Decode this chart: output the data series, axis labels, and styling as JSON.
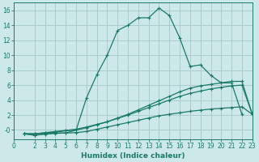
{
  "bg_color": "#cce8e8",
  "grid_color": "#aacccc",
  "line_color": "#1a7a6a",
  "xlabel": "Humidex (Indice chaleur)",
  "xlim": [
    0,
    23
  ],
  "ylim": [
    -1.2,
    17
  ],
  "yticks": [
    0,
    2,
    4,
    6,
    8,
    10,
    12,
    14,
    16
  ],
  "ytick_labels": [
    "-0",
    "2",
    "4",
    "6",
    "8",
    "10",
    "12",
    "14",
    "16"
  ],
  "xticks": [
    0,
    2,
    3,
    4,
    5,
    6,
    7,
    8,
    9,
    10,
    11,
    12,
    13,
    14,
    15,
    16,
    17,
    18,
    19,
    20,
    21,
    22,
    23
  ],
  "series4_x": [
    1,
    2,
    3,
    4,
    5,
    6,
    7,
    8,
    9,
    10,
    11,
    12,
    13,
    14,
    15,
    16,
    17,
    18,
    19,
    20,
    21,
    22
  ],
  "series4_y": [
    -0.5,
    -0.7,
    -0.5,
    -0.4,
    -0.4,
    0.0,
    4.3,
    7.4,
    10.0,
    13.3,
    14.0,
    15.0,
    15.0,
    16.3,
    15.3,
    12.3,
    8.5,
    8.7,
    7.3,
    6.3,
    6.3,
    2.1
  ],
  "series3_x": [
    1,
    2,
    3,
    4,
    5,
    6,
    7,
    8,
    9,
    10,
    11,
    12,
    13,
    14,
    15,
    16,
    17,
    18,
    19,
    20,
    21,
    22,
    23
  ],
  "series3_y": [
    -0.5,
    -0.5,
    -0.4,
    -0.3,
    -0.1,
    0.0,
    0.3,
    0.7,
    1.1,
    1.6,
    2.1,
    2.7,
    3.3,
    3.9,
    4.5,
    5.1,
    5.6,
    5.9,
    6.1,
    6.3,
    6.5,
    6.5,
    2.1
  ],
  "series2_x": [
    1,
    2,
    3,
    4,
    5,
    6,
    7,
    8,
    9,
    10,
    11,
    12,
    13,
    14,
    15,
    16,
    17,
    18,
    19,
    20,
    21,
    22,
    23
  ],
  "series2_y": [
    -0.5,
    -0.5,
    -0.35,
    -0.2,
    -0.05,
    0.1,
    0.4,
    0.75,
    1.1,
    1.55,
    2.0,
    2.5,
    3.0,
    3.5,
    4.0,
    4.5,
    4.9,
    5.2,
    5.5,
    5.7,
    5.9,
    6.0,
    2.1
  ],
  "series1_x": [
    1,
    2,
    3,
    4,
    5,
    6,
    7,
    8,
    9,
    10,
    11,
    12,
    13,
    14,
    15,
    16,
    17,
    18,
    19,
    20,
    21,
    22,
    23
  ],
  "series1_y": [
    -0.5,
    -0.7,
    -0.55,
    -0.45,
    -0.4,
    -0.35,
    -0.2,
    0.1,
    0.4,
    0.7,
    1.0,
    1.3,
    1.6,
    1.9,
    2.1,
    2.3,
    2.5,
    2.65,
    2.8,
    2.9,
    3.0,
    3.1,
    2.1
  ]
}
